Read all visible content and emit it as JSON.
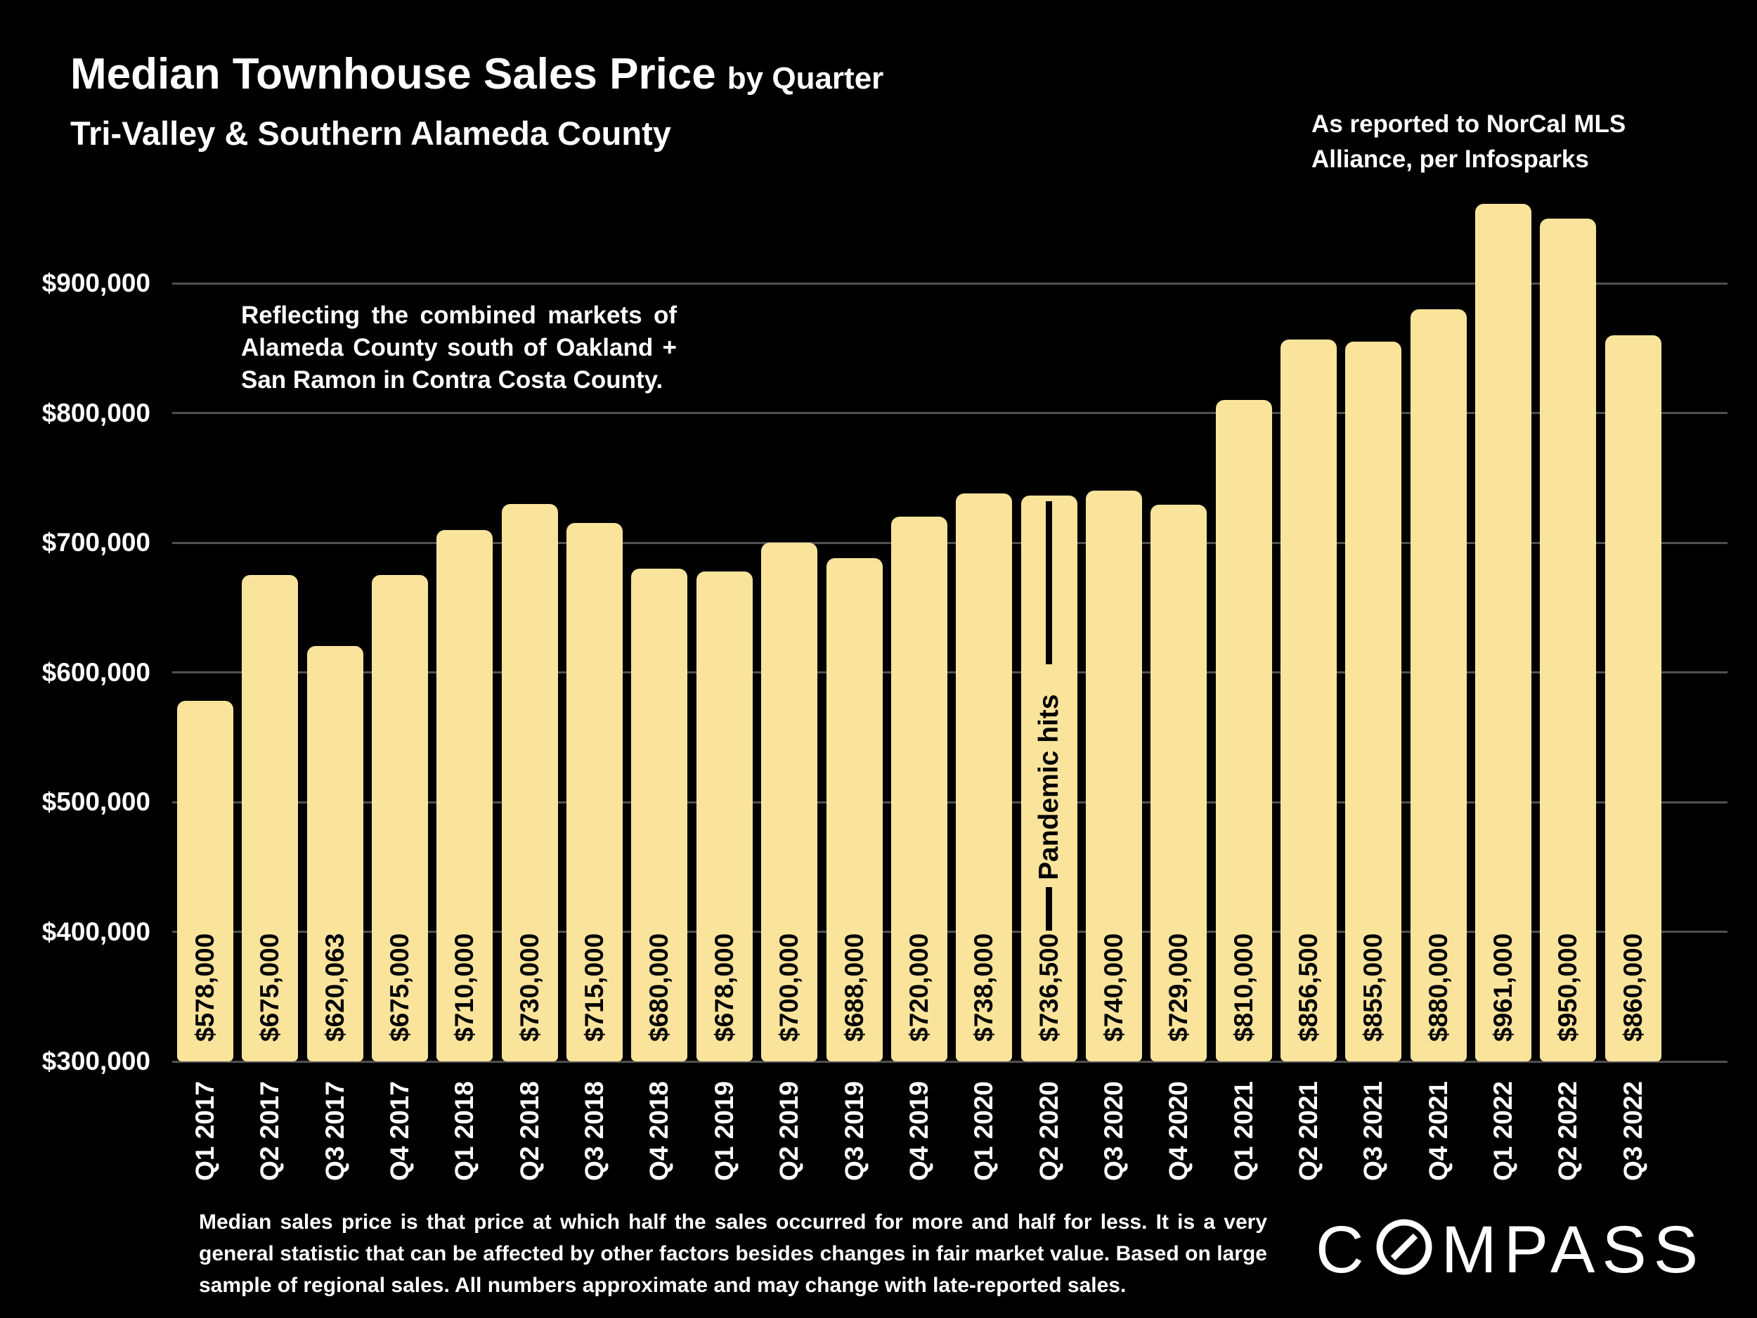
{
  "header": {
    "title": "Median Townhouse Sales Price",
    "title_suffix": "by Quarter",
    "subtitle": "Tri-Valley & Southern Alameda County",
    "source_note": "As reported to NorCal MLS\nAlliance, per Infosparks"
  },
  "annotation": "Reflecting the combined markets of Alameda County south of Oakland + San Ramon in Contra Costa County.",
  "footer": {
    "disclaimer": "Median sales price is that price at which half the sales occurred for more and half for less. It is a very general statistic that can be affected by other factors besides changes in fair market value. Based on large sample of regional sales. All numbers approximate and may change with late-reported sales.",
    "brand": "COMPASS"
  },
  "colors": {
    "background": "#000000",
    "bar": "#FAE49C",
    "gridline": "#505050",
    "text": "#FFFFFF",
    "bar_label": "#000000"
  },
  "chart_data": {
    "type": "bar",
    "title": "Median Townhouse Sales Price by Quarter",
    "subtitle": "Tri-Valley & Southern Alameda County",
    "categories": [
      "Q1 2017",
      "Q2 2017",
      "Q3 2017",
      "Q4 2017",
      "Q1 2018",
      "Q2 2018",
      "Q3 2018",
      "Q4 2018",
      "Q1 2019",
      "Q2 2019",
      "Q3 2019",
      "Q4 2019",
      "Q1 2020",
      "Q2 2020",
      "Q3 2020",
      "Q4 2020",
      "Q1 2021",
      "Q2 2021",
      "Q3 2021",
      "Q4 2021",
      "Q1 2022",
      "Q2 2022",
      "Q3 2022"
    ],
    "values": [
      578000,
      675000,
      620063,
      675000,
      710000,
      730000,
      715000,
      680000,
      678000,
      700000,
      688000,
      720000,
      738000,
      736500,
      740000,
      729000,
      810000,
      856500,
      855000,
      880000,
      961000,
      950000,
      860000
    ],
    "value_labels": [
      "$578,000",
      "$675,000",
      "$620,063",
      "$675,000",
      "$710,000",
      "$730,000",
      "$715,000",
      "$680,000",
      "$678,000",
      "$700,000",
      "$688,000",
      "$720,000",
      "$738,000",
      "$736,500",
      "$740,000",
      "$729,000",
      "$810,000",
      "$856,500",
      "$855,000",
      "$880,000",
      "$961,000",
      "$950,000",
      "$860,000"
    ],
    "yticks": [
      300000,
      400000,
      500000,
      600000,
      700000,
      800000,
      900000
    ],
    "ytick_labels": [
      "$300,000",
      "$400,000",
      "$500,000",
      "$600,000",
      "$700,000",
      "$800,000",
      "$900,000"
    ],
    "ylim": [
      300000,
      985000
    ],
    "grid": "horizontal",
    "legend": "none",
    "annotations": [
      {
        "text": "Pandemic hits",
        "target_category": "Q2 2020",
        "index": 13
      }
    ]
  }
}
